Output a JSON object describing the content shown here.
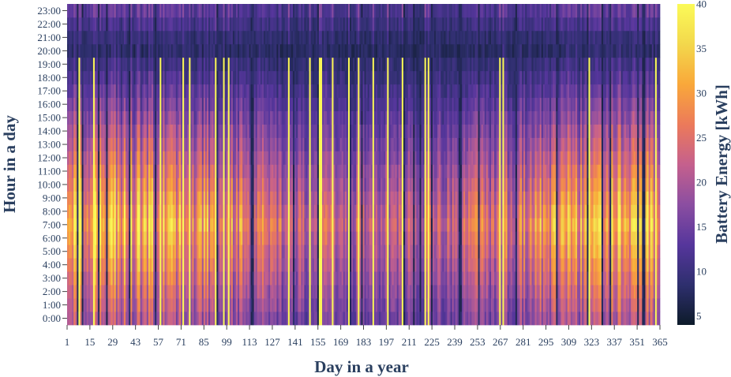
{
  "chart_data": {
    "type": "heatmap",
    "xlabel": "Day in a year",
    "ylabel": "Hour in a day",
    "colorbar_title": "Battery Energy [kWh]",
    "x_range": [
      1,
      365
    ],
    "x_ticks": [
      "1",
      "15",
      "29",
      "43",
      "57",
      "71",
      "85",
      "99",
      "113",
      "127",
      "141",
      "155",
      "169",
      "183",
      "197",
      "211",
      "225",
      "239",
      "253",
      "267",
      "281",
      "295",
      "309",
      "323",
      "337",
      "351",
      "365"
    ],
    "y_ticks": [
      "0:00",
      "1:00",
      "2:00",
      "3:00",
      "4:00",
      "5:00",
      "6:00",
      "7:00",
      "8:00",
      "9:00",
      "10:00",
      "11:00",
      "12:00",
      "13:00",
      "14:00",
      "15:00",
      "16:00",
      "17:00",
      "18:00",
      "19:00",
      "20:00",
      "21:00",
      "22:00",
      "23:00"
    ],
    "colorbar_range": [
      4,
      40
    ],
    "colorbar_ticks": [
      "5",
      "10",
      "15",
      "20",
      "25",
      "30",
      "35",
      "40"
    ],
    "colorscale": [
      "#0d1b2a",
      "#2e2f6e",
      "#56369c",
      "#8b4ea1",
      "#c5608d",
      "#ec7a5a",
      "#f9a83a",
      "#f3d84c",
      "#fbfa58"
    ],
    "value_model": {
      "morning_peak_kwh": 38,
      "night_low_kwh": 6,
      "description_hours": "peak around 6:00-8:00, minimum around 20:00-22:00"
    },
    "legend": "colorbar-right"
  }
}
